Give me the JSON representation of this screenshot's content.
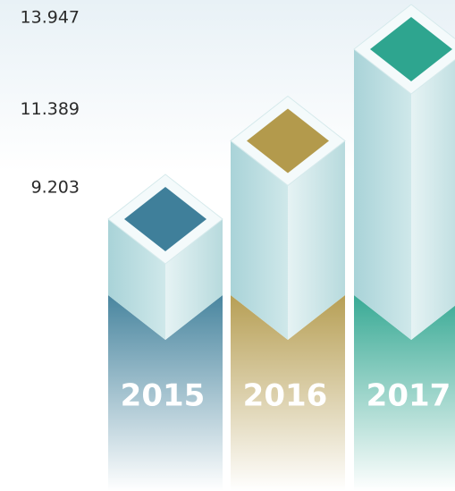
{
  "chart_data": {
    "type": "bar3d",
    "categories": [
      "2015",
      "2016",
      "2017"
    ],
    "values": [
      9203,
      11389,
      13947
    ],
    "value_labels": [
      "9.203",
      "11.389",
      "13.947"
    ],
    "colors": [
      "#3f7f9a",
      "#b39a4c",
      "#2ea58f"
    ]
  }
}
